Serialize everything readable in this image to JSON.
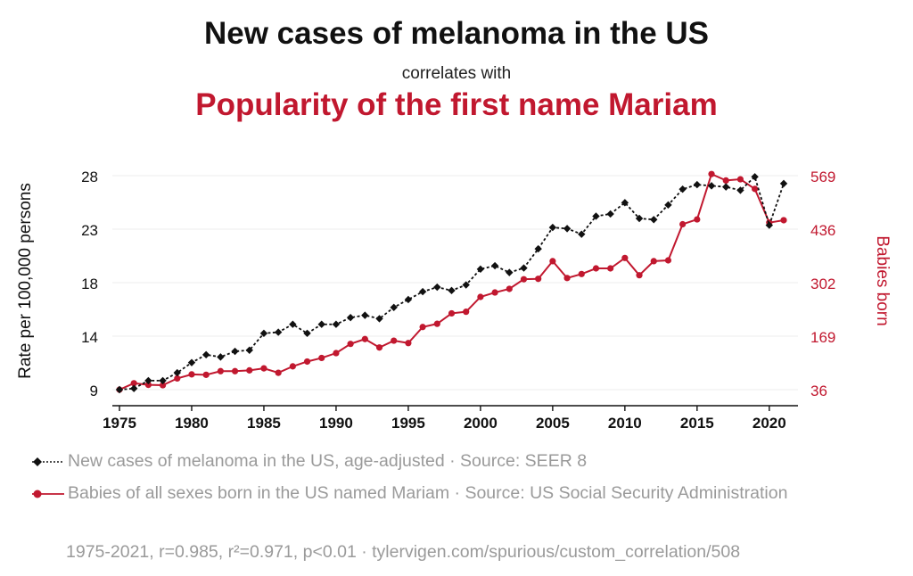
{
  "header": {
    "title": "New cases of melanoma in the US",
    "subtitle": "correlates with",
    "title2": "Popularity of the first name Mariam"
  },
  "colors": {
    "series1": "#111111",
    "series2": "#c1182f",
    "grid": "#eeeeee",
    "muted": "#9a9a9a"
  },
  "chart_data": {
    "type": "line",
    "title": "New cases of melanoma in the US",
    "subtitle": "correlates with",
    "title2": "Popularity of the first name Mariam",
    "ylabel_left": "Rate per 100,000 persons",
    "ylabel_right": "Babies born",
    "x_ticks": [
      "1975",
      "1980",
      "1985",
      "1990",
      "1995",
      "2000",
      "2005",
      "2010",
      "2015",
      "2020"
    ],
    "y_left_ticks": [
      "9",
      "14",
      "18",
      "23",
      "28"
    ],
    "y_right_ticks": [
      "36",
      "169",
      "302",
      "436",
      "569"
    ],
    "y_left_range": [
      9,
      28
    ],
    "y_right_range": [
      36,
      569
    ],
    "x_range": [
      1975,
      2021
    ],
    "grid": true,
    "x": [
      1975,
      1976,
      1977,
      1978,
      1979,
      1980,
      1981,
      1982,
      1983,
      1984,
      1985,
      1986,
      1987,
      1988,
      1989,
      1990,
      1991,
      1992,
      1993,
      1994,
      1995,
      1996,
      1997,
      1998,
      1999,
      2000,
      2001,
      2002,
      2003,
      2004,
      2005,
      2006,
      2007,
      2008,
      2009,
      2010,
      2011,
      2012,
      2013,
      2014,
      2015,
      2016,
      2017,
      2018,
      2019,
      2020,
      2021
    ],
    "series": [
      {
        "name": "New cases of melanoma in the US, age-adjusted · Source: SEER 8",
        "axis": "left",
        "style": "dotted-diamond",
        "values": [
          9.0,
          9.1,
          9.8,
          9.8,
          10.5,
          11.4,
          12.1,
          11.9,
          12.4,
          12.5,
          14.0,
          14.1,
          14.8,
          14.0,
          14.8,
          14.8,
          15.4,
          15.6,
          15.3,
          16.3,
          17.0,
          17.7,
          18.1,
          17.8,
          18.3,
          19.7,
          20.0,
          19.4,
          19.8,
          21.5,
          23.4,
          23.3,
          22.8,
          24.4,
          24.6,
          25.6,
          24.2,
          24.1,
          25.4,
          26.8,
          27.2,
          27.1,
          27.0,
          26.7,
          27.9,
          23.6,
          27.3
        ]
      },
      {
        "name": "Babies of all sexes born in the US named Mariam · Source: US Social Security Administration",
        "axis": "right",
        "style": "solid-circle",
        "values": [
          36,
          52,
          48,
          47,
          64,
          74,
          73,
          82,
          82,
          84,
          89,
          78,
          94,
          106,
          115,
          127,
          150,
          162,
          141,
          158,
          152,
          192,
          200,
          226,
          230,
          267,
          278,
          287,
          311,
          312,
          356,
          314,
          324,
          338,
          338,
          364,
          321,
          356,
          358,
          448,
          460,
          573,
          557,
          560,
          536,
          452,
          458
        ]
      }
    ],
    "legend": [
      "New cases of melanoma in the US, age-adjusted · Source: SEER 8",
      "Babies of all sexes born in the US named Mariam · Source: US Social Security Administration"
    ],
    "footer": "1975-2021, r=0.985, r²=0.971, p<0.01 · tylervigen.com/spurious/custom_correlation/508"
  }
}
